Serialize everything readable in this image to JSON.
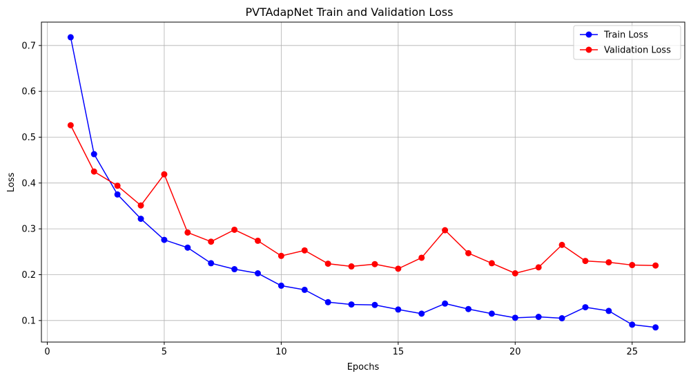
{
  "chart_data": {
    "type": "line",
    "title": "PVTAdapNet Train and Validation Loss",
    "xlabel": "Epochs",
    "ylabel": "Loss",
    "xlim": [
      -0.25,
      27.25
    ],
    "ylim": [
      0.053,
      0.751
    ],
    "xticks": [
      0,
      5,
      10,
      15,
      20,
      25
    ],
    "yticks": [
      0.1,
      0.2,
      0.3,
      0.4,
      0.5,
      0.6,
      0.7
    ],
    "grid": true,
    "legend_position": "top-right",
    "x": [
      1,
      2,
      3,
      4,
      5,
      6,
      7,
      8,
      9,
      10,
      11,
      12,
      13,
      14,
      15,
      16,
      17,
      18,
      19,
      20,
      21,
      22,
      23,
      24,
      25,
      26
    ],
    "series": [
      {
        "name": "Train Loss",
        "color": "#0000ff",
        "marker": "circle",
        "values": [
          0.718,
          0.463,
          0.375,
          0.322,
          0.276,
          0.259,
          0.225,
          0.212,
          0.203,
          0.176,
          0.167,
          0.14,
          0.135,
          0.134,
          0.124,
          0.115,
          0.137,
          0.125,
          0.115,
          0.106,
          0.108,
          0.105,
          0.129,
          0.121,
          0.091,
          0.085
        ]
      },
      {
        "name": "Validation Loss",
        "color": "#ff0000",
        "marker": "circle",
        "values": [
          0.526,
          0.425,
          0.394,
          0.351,
          0.419,
          0.292,
          0.272,
          0.298,
          0.274,
          0.241,
          0.253,
          0.224,
          0.218,
          0.223,
          0.213,
          0.237,
          0.297,
          0.247,
          0.225,
          0.203,
          0.216,
          0.265,
          0.23,
          0.227,
          0.221,
          0.22
        ]
      }
    ]
  }
}
